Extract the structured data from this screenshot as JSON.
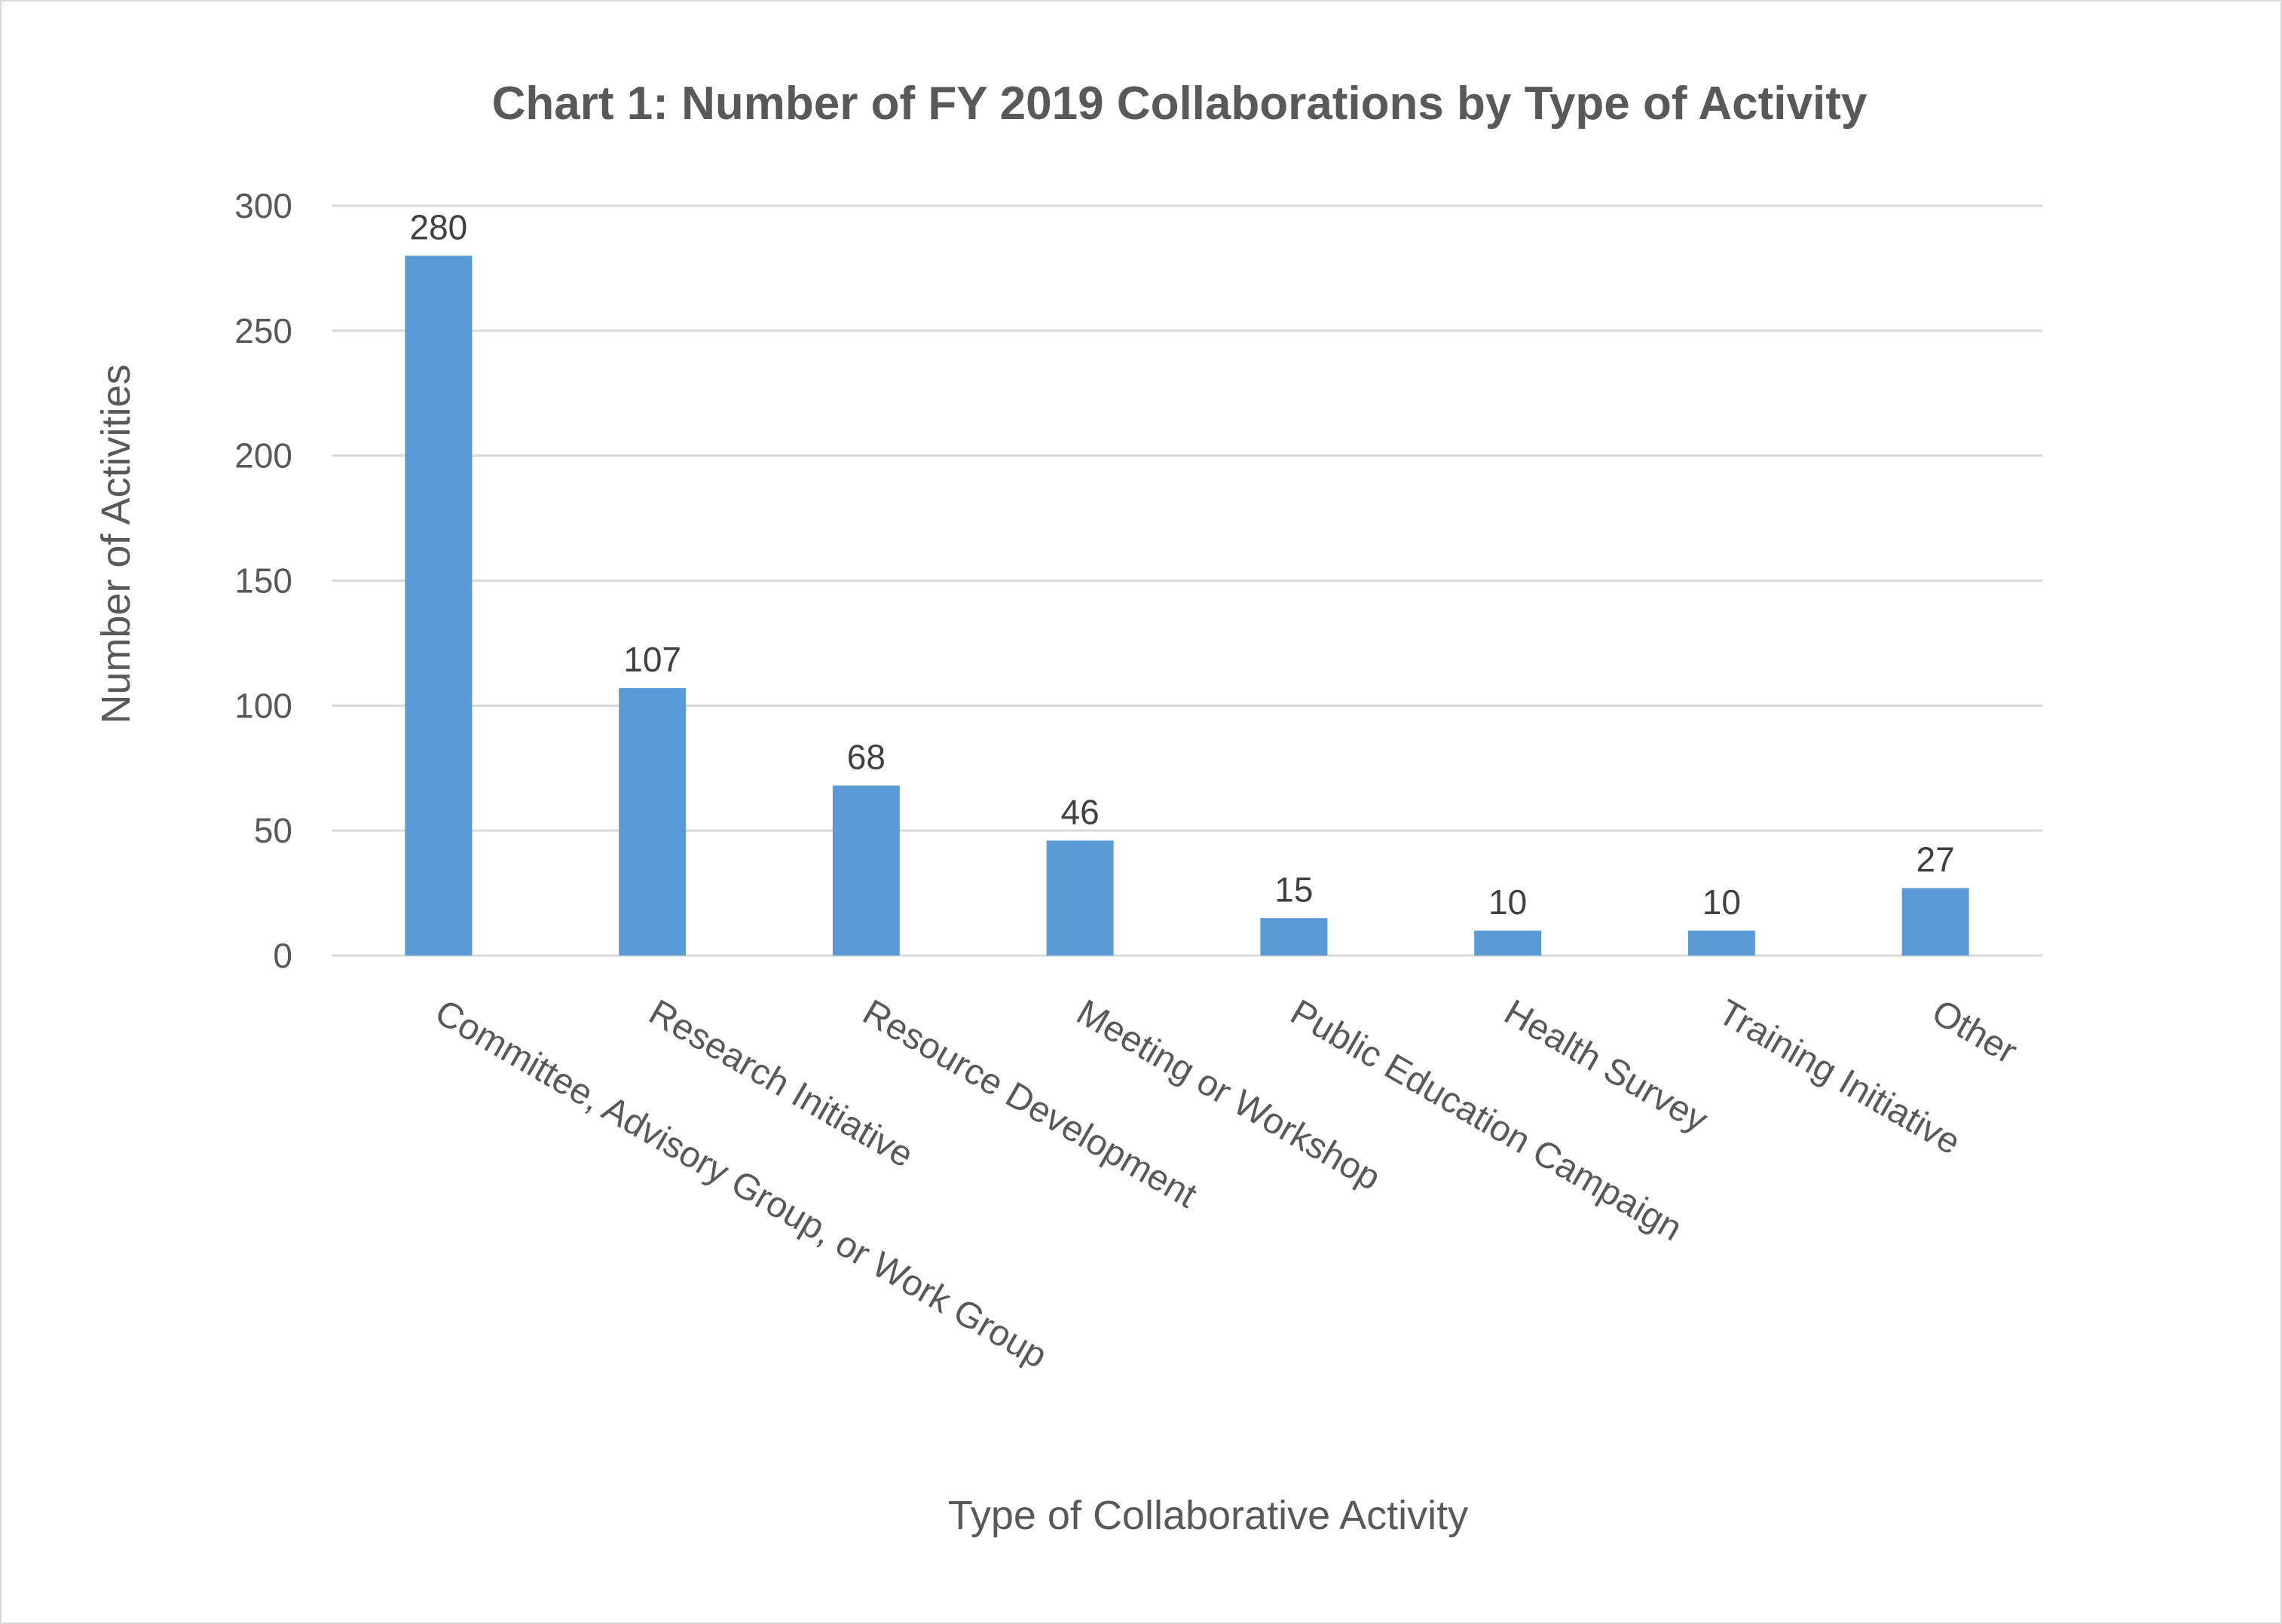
{
  "chart_data": {
    "type": "bar",
    "title": "Chart 1: Number of FY 2019 Collaborations by Type of Activity",
    "xlabel": "Type of Collaborative Activity",
    "ylabel": "Number of Activities",
    "categories": [
      "Committee, Advisory Group, or Work Group",
      "Research Initiative",
      "Resource Development",
      "Meeting or Workshop",
      "Public Education Campaign",
      "Health Survey",
      "Training Initiative",
      "Other"
    ],
    "values": [
      280,
      107,
      68,
      46,
      15,
      10,
      10,
      27
    ],
    "ylim": [
      0,
      300
    ],
    "yticks": [
      0,
      50,
      100,
      150,
      200,
      250,
      300
    ],
    "grid": true,
    "legend": "none",
    "bar_color": "#5b9bd5",
    "data_labels": true
  }
}
